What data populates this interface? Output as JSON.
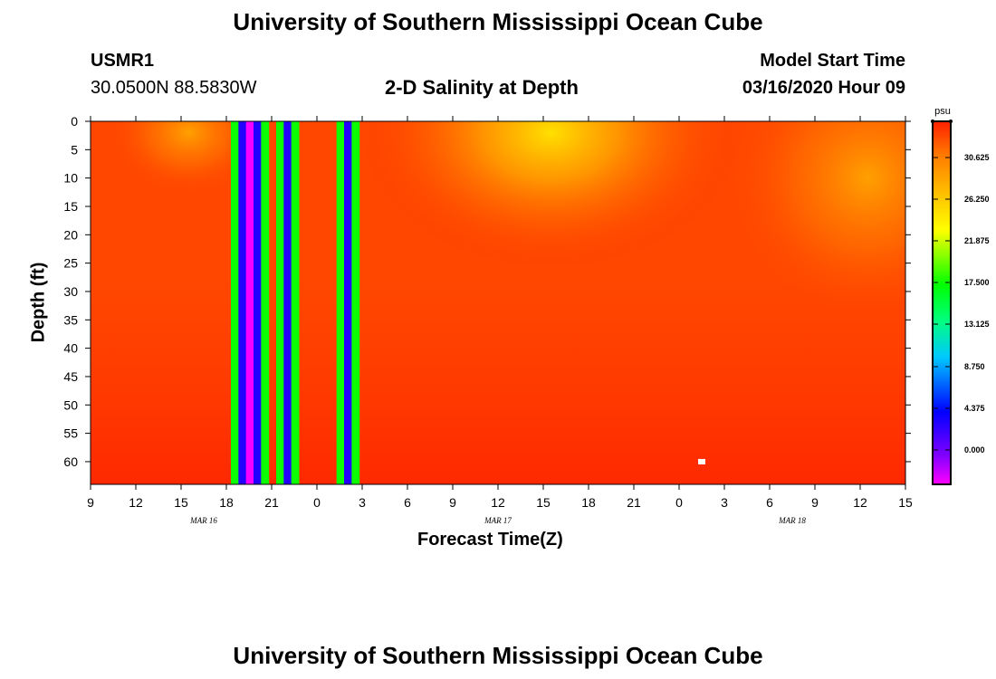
{
  "header": {
    "title": "University of Southern Mississippi Ocean Cube",
    "station": "USMR1",
    "coords": "30.0500N 88.5830W",
    "plot_title": "2-D Salinity at Depth",
    "model_start_label": "Model Start Time",
    "model_start_value": "03/16/2020 Hour 09"
  },
  "footer": {
    "title": "University of Southern Mississippi Ocean Cube"
  },
  "chart_data": {
    "type": "heatmap",
    "title": "2-D Salinity at Depth",
    "xlabel": "Forecast Time(Z)",
    "ylabel": "Depth (ft)",
    "x_tick_labels": [
      "9",
      "12",
      "15",
      "18",
      "21",
      "0",
      "3",
      "6",
      "9",
      "12",
      "15",
      "18",
      "21",
      "0",
      "3",
      "6",
      "9",
      "12",
      "15"
    ],
    "x_range_hours": [
      0,
      54
    ],
    "date_labels": [
      {
        "text": "MAR 16",
        "hour": 7.5
      },
      {
        "text": "MAR 17",
        "hour": 27
      },
      {
        "text": "MAR 18",
        "hour": 46.5
      }
    ],
    "y_ticks": [
      0,
      5,
      10,
      15,
      20,
      25,
      30,
      35,
      40,
      45,
      50,
      55,
      60
    ],
    "ylim": [
      0,
      64
    ],
    "colorbar": {
      "unit": "psu",
      "ticks": [
        "30.625",
        "26.250",
        "21.875",
        "17.500",
        "13.125",
        "8.750",
        "4.375",
        "0.000"
      ],
      "colors": [
        "#ff00ff",
        "#8000ff",
        "#0000ff",
        "#00c8ff",
        "#00ff80",
        "#00ff00",
        "#ffff00",
        "#ffc000",
        "#ff8000",
        "#ff2000"
      ]
    },
    "background_salinity_psu": 33.5,
    "fresh_bands": [
      {
        "start_hour": 9.3,
        "end_hour": 9.8,
        "salinity_psu": 18.5
      },
      {
        "start_hour": 9.8,
        "end_hour": 10.3,
        "salinity_psu": 4.0
      },
      {
        "start_hour": 10.3,
        "end_hour": 10.8,
        "salinity_psu": -2.0
      },
      {
        "start_hour": 10.8,
        "end_hour": 11.3,
        "salinity_psu": 4.0
      },
      {
        "start_hour": 11.3,
        "end_hour": 11.8,
        "salinity_psu": 18.5
      },
      {
        "start_hour": 12.3,
        "end_hour": 12.8,
        "salinity_psu": 18.5
      },
      {
        "start_hour": 12.8,
        "end_hour": 13.3,
        "salinity_psu": 4.0
      },
      {
        "start_hour": 13.3,
        "end_hour": 13.8,
        "salinity_psu": 18.5
      },
      {
        "start_hour": 16.3,
        "end_hour": 16.8,
        "salinity_psu": 18.5
      },
      {
        "start_hour": 16.8,
        "end_hour": 17.3,
        "salinity_psu": 4.0
      },
      {
        "start_hour": 17.3,
        "end_hour": 17.8,
        "salinity_psu": 18.5
      }
    ],
    "fresher_surface_zones": [
      {
        "center_hour": 6.5,
        "center_depth": 2,
        "salinity_psu": 30.5
      },
      {
        "center_hour": 30.5,
        "center_depth": 2,
        "salinity_psu": 27.0
      },
      {
        "center_hour": 51.5,
        "center_depth": 10,
        "salinity_psu": 29.5
      }
    ],
    "missing_point": {
      "hour": 40.5,
      "depth": 60
    }
  }
}
